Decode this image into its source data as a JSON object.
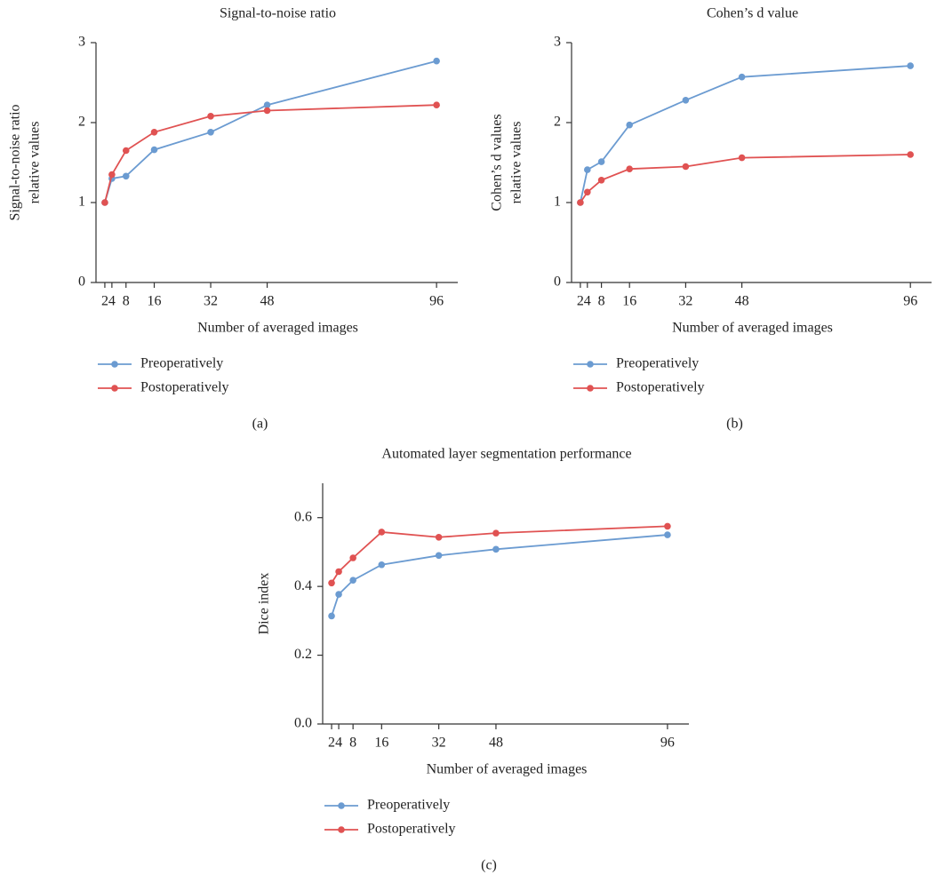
{
  "chart_data": [
    {
      "type": "line",
      "title": "Signal-to-noise ratio",
      "panel_label": "(a)",
      "xlabel": "Number of averaged images",
      "ylabel": [
        "Signal-to-noise ratio",
        "relative values"
      ],
      "x": [
        2,
        4,
        8,
        16,
        32,
        48,
        96
      ],
      "xlim": [
        0,
        100
      ],
      "xticks": [
        2,
        4,
        8,
        16,
        32,
        48,
        96
      ],
      "ylim": [
        0,
        3
      ],
      "yticks": [
        0,
        1,
        2,
        3
      ],
      "series": [
        {
          "name": "Preoperatively",
          "color": "#6b9bd1",
          "values": [
            1.0,
            1.3,
            1.33,
            1.66,
            1.88,
            2.22,
            2.77
          ]
        },
        {
          "name": "Postoperatively",
          "color": "#e05252",
          "values": [
            1.0,
            1.35,
            1.65,
            1.88,
            2.08,
            2.15,
            2.22
          ]
        }
      ]
    },
    {
      "type": "line",
      "title": "Cohen’s d value",
      "panel_label": "(b)",
      "xlabel": "Number of averaged images",
      "ylabel": [
        "Cohen’s d values",
        "relative values"
      ],
      "x": [
        2,
        4,
        8,
        16,
        32,
        48,
        96
      ],
      "xlim": [
        0,
        100
      ],
      "xticks": [
        2,
        4,
        8,
        16,
        32,
        48,
        96
      ],
      "ylim": [
        0,
        3
      ],
      "yticks": [
        0,
        1,
        2,
        3
      ],
      "series": [
        {
          "name": "Preoperatively",
          "color": "#6b9bd1",
          "values": [
            1.0,
            1.41,
            1.51,
            1.97,
            2.28,
            2.57,
            2.71
          ]
        },
        {
          "name": "Postoperatively",
          "color": "#e05252",
          "values": [
            1.0,
            1.13,
            1.28,
            1.42,
            1.45,
            1.56,
            1.6
          ]
        }
      ]
    },
    {
      "type": "line",
      "title": "Automated layer segmentation performance",
      "panel_label": "(c)",
      "xlabel": "Number of averaged images",
      "ylabel": [
        "Dice index"
      ],
      "x": [
        2,
        4,
        8,
        16,
        32,
        48,
        96
      ],
      "xlim": [
        0,
        100
      ],
      "xticks": [
        2,
        4,
        8,
        16,
        32,
        48,
        96
      ],
      "ylim": [
        0,
        0.7
      ],
      "yticks": [
        {
          "value": 0,
          "label": "0.0"
        },
        0.2,
        0.4,
        0.6
      ],
      "series": [
        {
          "name": "Preoperatively",
          "color": "#6b9bd1",
          "values": [
            0.314,
            0.377,
            0.418,
            0.463,
            0.49,
            0.508,
            0.55
          ]
        },
        {
          "name": "Postoperatively",
          "color": "#e05252",
          "values": [
            0.41,
            0.443,
            0.483,
            0.558,
            0.543,
            0.555,
            0.575
          ]
        }
      ]
    }
  ]
}
